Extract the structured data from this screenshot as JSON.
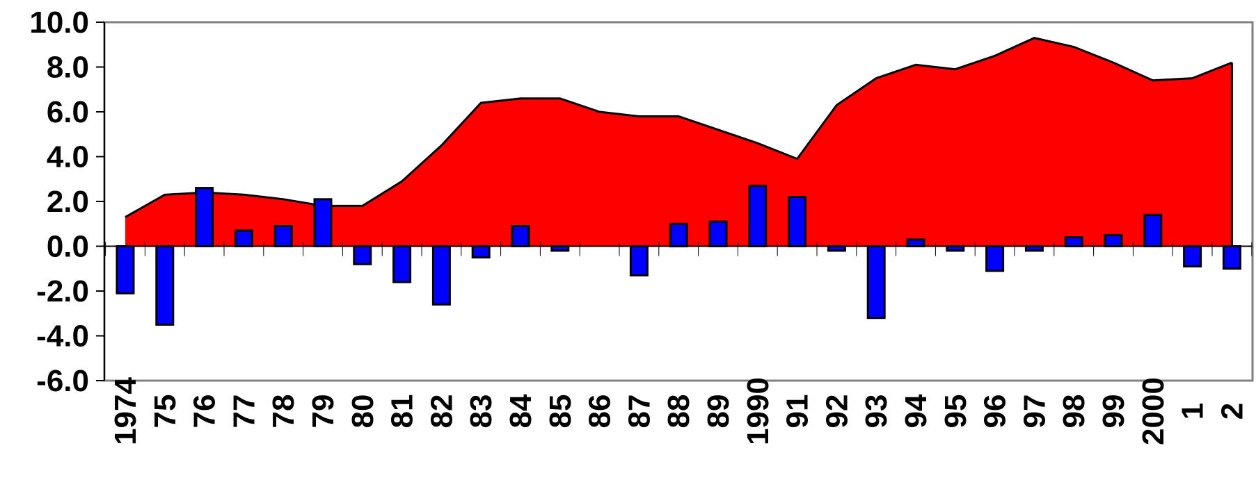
{
  "chart_data": {
    "type": "bar+area",
    "title": "",
    "xlabel": "",
    "ylabel": "",
    "ylim": [
      -6.0,
      10.0
    ],
    "yticks": [
      "10.0",
      "8.0",
      "6.0",
      "4.0",
      "2.0",
      "0.0",
      "-2.0",
      "-4.0",
      "-6.0"
    ],
    "ytick_values": [
      10,
      8,
      6,
      4,
      2,
      0,
      -2,
      -4,
      -6
    ],
    "categories": [
      "1974",
      "75",
      "76",
      "77",
      "78",
      "79",
      "80",
      "81",
      "82",
      "83",
      "84",
      "85",
      "86",
      "87",
      "88",
      "89",
      "1990",
      "91",
      "92",
      "93",
      "94",
      "95",
      "96",
      "97",
      "98",
      "99",
      "2000",
      "1",
      "2"
    ],
    "series": [
      {
        "kind": "area",
        "color": "#ff0000",
        "values": [
          1.3,
          2.3,
          2.4,
          2.3,
          2.1,
          1.8,
          1.8,
          2.9,
          4.5,
          6.4,
          6.6,
          6.6,
          6.0,
          5.8,
          5.8,
          5.2,
          4.6,
          3.9,
          6.3,
          7.5,
          8.1,
          7.9,
          8.5,
          9.3,
          8.9,
          8.2,
          7.4,
          7.5,
          8.2
        ]
      },
      {
        "kind": "bar",
        "color": "#0000ff",
        "values": [
          -2.1,
          -3.5,
          2.6,
          0.7,
          0.9,
          2.1,
          -0.8,
          -1.6,
          -2.6,
          -0.5,
          0.9,
          -0.2,
          0.0,
          -1.3,
          1.0,
          1.1,
          2.7,
          2.2,
          -0.2,
          -3.2,
          0.3,
          -0.2,
          -1.1,
          -0.2,
          0.4,
          0.5,
          1.4,
          -0.9,
          -1.0
        ]
      }
    ],
    "grid": false,
    "legend": "none"
  }
}
